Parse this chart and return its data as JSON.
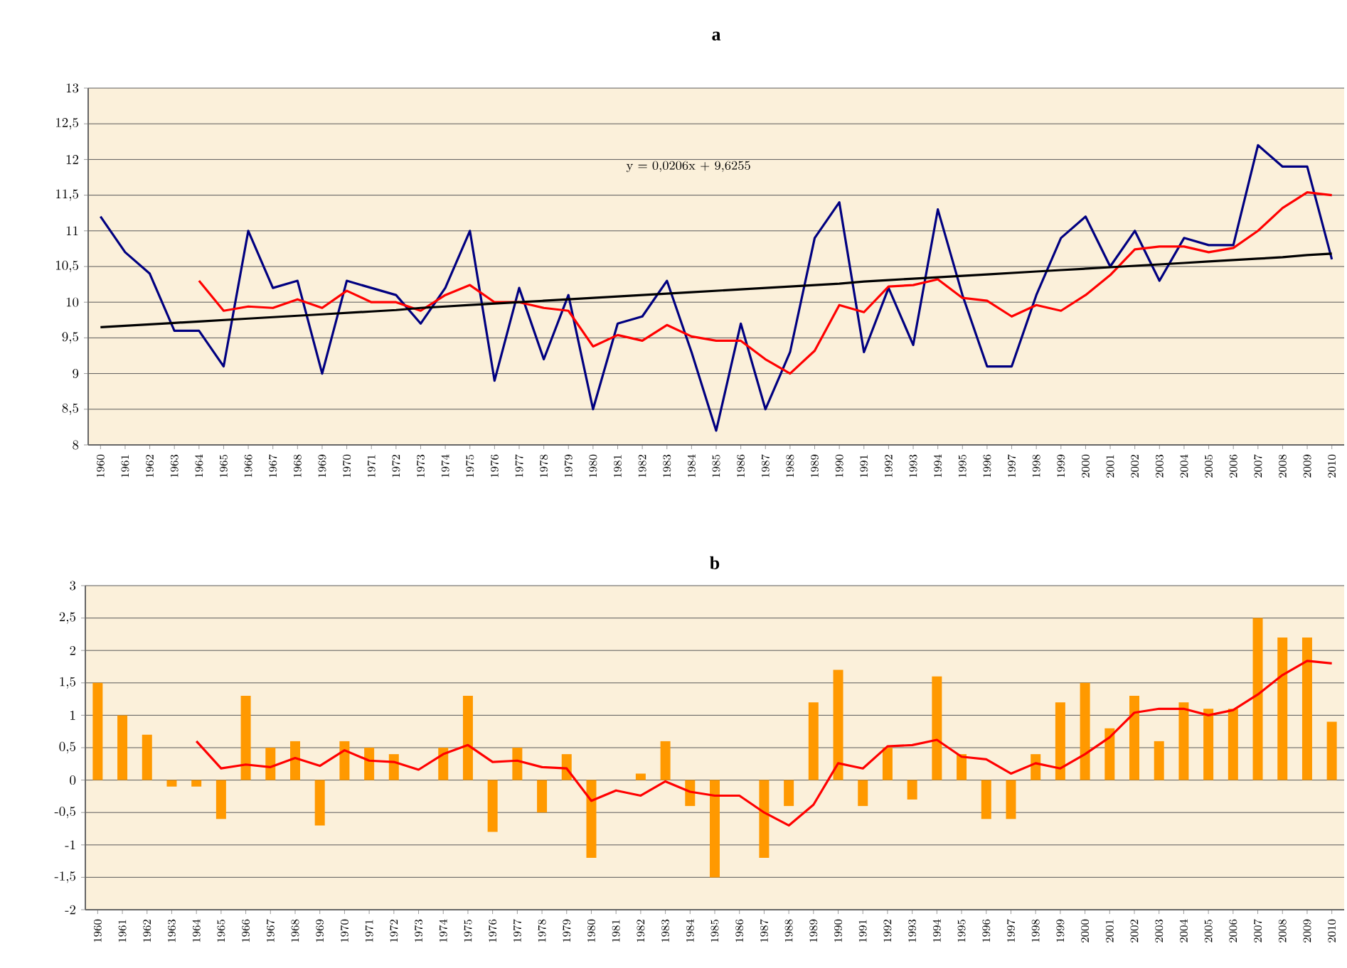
{
  "chart_data": [
    {
      "type": "line",
      "title": "a",
      "categories": [
        "1960",
        "1961",
        "1962",
        "1963",
        "1964",
        "1965",
        "1966",
        "1967",
        "1968",
        "1969",
        "1970",
        "1971",
        "1972",
        "1973",
        "1974",
        "1975",
        "1976",
        "1977",
        "1978",
        "1979",
        "1980",
        "1981",
        "1982",
        "1983",
        "1984",
        "1985",
        "1986",
        "1987",
        "1988",
        "1989",
        "1990",
        "1991",
        "1992",
        "1993",
        "1994",
        "1995",
        "1996",
        "1997",
        "1998",
        "1999",
        "2000",
        "2001",
        "2002",
        "2003",
        "2004",
        "2005",
        "2006",
        "2007",
        "2008",
        "2009",
        "2010"
      ],
      "series": [
        {
          "color": "#000080",
          "values": [
            11.2,
            10.7,
            10.4,
            9.6,
            9.6,
            9.1,
            11.0,
            10.2,
            10.3,
            9.0,
            10.3,
            10.2,
            10.1,
            9.7,
            10.2,
            11.0,
            8.9,
            10.2,
            9.2,
            10.1,
            8.5,
            9.7,
            9.8,
            10.3,
            9.3,
            8.2,
            9.7,
            8.5,
            9.3,
            10.9,
            11.4,
            9.3,
            10.2,
            9.4,
            11.3,
            10.1,
            9.1,
            9.1,
            10.1,
            10.9,
            11.2,
            10.5,
            11.0,
            10.3,
            10.9,
            10.8,
            10.8,
            12.2,
            11.9,
            11.9,
            10.6
          ]
        },
        {
          "color": "#ff0000",
          "values": [
            null,
            null,
            null,
            null,
            10.3,
            9.88,
            9.94,
            9.92,
            10.04,
            9.92,
            10.16,
            10.0,
            10.0,
            9.88,
            10.1,
            10.24,
            10.0,
            10.0,
            9.92,
            9.88,
            9.38,
            9.54,
            9.46,
            9.68,
            9.52,
            9.46,
            9.46,
            9.2,
            9.0,
            9.32,
            9.96,
            9.86,
            10.22,
            10.24,
            10.32,
            10.06,
            10.02,
            9.8,
            9.96,
            9.88,
            10.1,
            10.38,
            10.74,
            10.78,
            10.78,
            10.7,
            10.76,
            11.0,
            11.32,
            11.54,
            11.5
          ]
        },
        {
          "type": "line",
          "color": "#000000",
          "values": [
            9.65,
            9.67,
            9.69,
            9.71,
            9.73,
            9.75,
            9.77,
            9.79,
            9.81,
            9.83,
            9.85,
            9.87,
            9.89,
            9.92,
            9.94,
            9.96,
            9.98,
            10.0,
            10.02,
            10.04,
            10.06,
            10.08,
            10.1,
            10.12,
            10.14,
            10.16,
            10.18,
            10.2,
            10.22,
            10.24,
            10.26,
            10.29,
            10.31,
            10.33,
            10.35,
            10.37,
            10.39,
            10.41,
            10.43,
            10.45,
            10.47,
            10.49,
            10.51,
            10.53,
            10.55,
            10.57,
            10.59,
            10.61,
            10.63,
            10.66,
            10.68
          ]
        }
      ],
      "ylim": [
        8,
        13
      ],
      "yticks": [
        8,
        {
          "value": 8.5,
          "label": "8,5"
        },
        9,
        {
          "value": 9.5,
          "label": "9,5"
        },
        10,
        {
          "value": 10.5,
          "label": "10,5"
        },
        11,
        {
          "value": 11.5,
          "label": "11,5"
        },
        12,
        {
          "value": 12.5,
          "label": "12,5"
        },
        13
      ],
      "grid": "y",
      "annotations": [
        "y = 0,0206x + 9,6255"
      ]
    },
    {
      "type": "bar",
      "title": "b",
      "categories": [
        "1960",
        "1961",
        "1962",
        "1963",
        "1964",
        "1965",
        "1966",
        "1967",
        "1968",
        "1969",
        "1970",
        "1971",
        "1972",
        "1973",
        "1974",
        "1975",
        "1976",
        "1977",
        "1978",
        "1979",
        "1980",
        "1981",
        "1982",
        "1983",
        "1984",
        "1985",
        "1986",
        "1987",
        "1988",
        "1989",
        "1990",
        "1991",
        "1992",
        "1993",
        "1994",
        "1995",
        "1996",
        "1997",
        "1998",
        "1999",
        "2000",
        "2001",
        "2002",
        "2003",
        "2004",
        "2005",
        "2006",
        "2007",
        "2008",
        "2009",
        "2010"
      ],
      "series": [
        {
          "type": "bar",
          "color": "#ff9900",
          "values": [
            1.5,
            1.0,
            0.7,
            -0.1,
            -0.1,
            -0.6,
            1.3,
            0.5,
            0.6,
            -0.7,
            0.6,
            0.5,
            0.4,
            0,
            0.5,
            1.3,
            -0.8,
            0.5,
            -0.5,
            0.4,
            -1.2,
            0,
            0.1,
            0.6,
            -0.4,
            -1.5,
            0,
            -1.2,
            -0.4,
            1.2,
            1.7,
            -0.4,
            0.5,
            -0.3,
            1.6,
            0.4,
            -0.6,
            -0.6,
            0.4,
            1.2,
            1.5,
            0.8,
            1.3,
            0.6,
            1.2,
            1.1,
            1.1,
            2.5,
            2.2,
            2.2,
            0.9
          ]
        },
        {
          "type": "line",
          "color": "#ff0000",
          "values": [
            null,
            null,
            null,
            null,
            0.6,
            0.18,
            0.24,
            0.2,
            0.34,
            0.22,
            0.46,
            0.3,
            0.28,
            0.16,
            0.4,
            0.54,
            0.28,
            0.3,
            0.2,
            0.18,
            -0.32,
            -0.16,
            -0.24,
            -0.02,
            -0.18,
            -0.24,
            -0.24,
            -0.5,
            -0.7,
            -0.38,
            0.26,
            0.18,
            0.52,
            0.54,
            0.62,
            0.36,
            0.32,
            0.1,
            0.26,
            0.18,
            0.4,
            0.66,
            1.04,
            1.1,
            1.1,
            1.0,
            1.08,
            1.32,
            1.62,
            1.84,
            1.8
          ]
        }
      ],
      "ylim": [
        -2,
        3
      ],
      "yticks": [
        -2,
        {
          "value": -1.5,
          "label": "-1,5"
        },
        -1,
        {
          "value": -0.5,
          "label": "-0,5"
        },
        0,
        {
          "value": 0.5,
          "label": "0,5"
        },
        1,
        {
          "value": 1.5,
          "label": "1,5"
        },
        2,
        {
          "value": 2.5,
          "label": "2,5"
        },
        3
      ],
      "grid": "y"
    }
  ]
}
